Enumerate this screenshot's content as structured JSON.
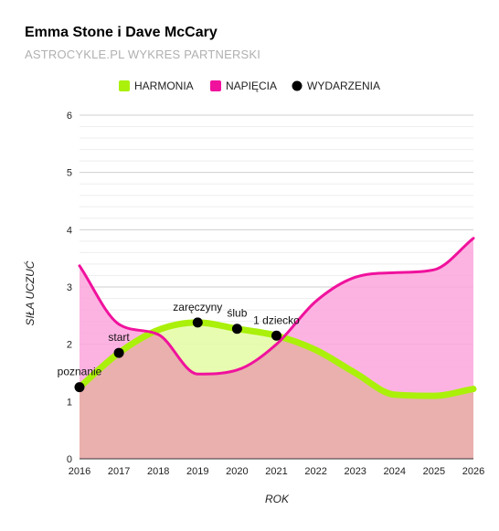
{
  "header": {
    "title": "Emma Stone i Dave McCary",
    "subtitle": "ASTROCYKLE.PL WYKRES PARTNERSKI"
  },
  "chart_data": {
    "type": "area",
    "xlabel": "ROK",
    "ylabel": "SIŁA UCZUĆ",
    "xlim": [
      2016,
      2026
    ],
    "ylim": [
      0,
      6
    ],
    "x_ticks": [
      2016,
      2017,
      2018,
      2019,
      2020,
      2021,
      2022,
      2023,
      2024,
      2025,
      2026
    ],
    "y_ticks": [
      0,
      1,
      2,
      3,
      4,
      5,
      6
    ],
    "grid": true,
    "legend_position": "top",
    "legend": [
      {
        "key": "harmonia",
        "label": "HARMONIA",
        "color": "#aaf00a"
      },
      {
        "key": "napiecia",
        "label": "NAPIĘCIA",
        "color": "#f0129d"
      },
      {
        "key": "wydarzenia",
        "label": "WYDARZENIA",
        "color": "#000000"
      }
    ],
    "series": [
      {
        "name": "HARMONIA",
        "color": "#aaf00a",
        "fill": "#e6fca8",
        "points": [
          [
            2016,
            1.25
          ],
          [
            2017,
            1.85
          ],
          [
            2018,
            2.25
          ],
          [
            2019,
            2.38
          ],
          [
            2020,
            2.27
          ],
          [
            2021,
            2.15
          ],
          [
            2022,
            1.9
          ],
          [
            2023,
            1.5
          ],
          [
            2024,
            1.12
          ],
          [
            2025,
            1.1
          ],
          [
            2026,
            1.22
          ]
        ]
      },
      {
        "name": "NAPIĘCIA",
        "color": "#f0129d",
        "fill": "#fda6dd",
        "points": [
          [
            2016,
            3.37
          ],
          [
            2017,
            2.35
          ],
          [
            2018,
            2.17
          ],
          [
            2019,
            1.48
          ],
          [
            2020,
            1.55
          ],
          [
            2021,
            2.0
          ],
          [
            2022,
            2.75
          ],
          [
            2023,
            3.17
          ],
          [
            2024,
            3.25
          ],
          [
            2025,
            3.3
          ],
          [
            2026,
            3.85
          ]
        ]
      }
    ],
    "events": [
      {
        "label": "poznanie",
        "x": 2016,
        "y": 1.25
      },
      {
        "label": "start",
        "x": 2017,
        "y": 1.85
      },
      {
        "label": "zaręczyny",
        "x": 2019,
        "y": 2.38
      },
      {
        "label": "ślub",
        "x": 2020,
        "y": 2.27
      },
      {
        "label": "1 dziecko",
        "x": 2021,
        "y": 2.15
      }
    ],
    "overlap_fill": "#e9b0ad"
  }
}
